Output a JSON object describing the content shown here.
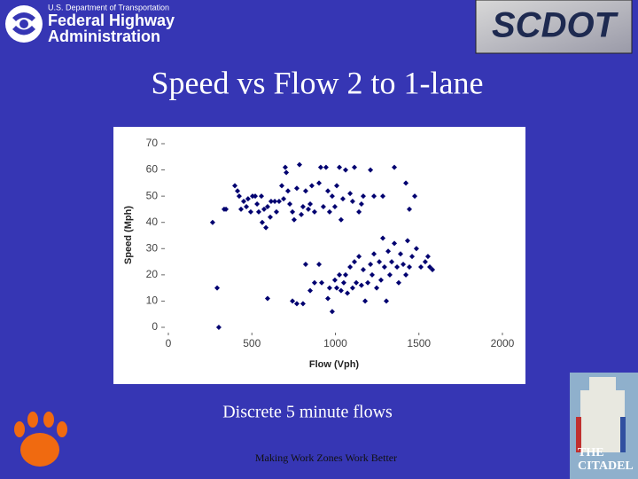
{
  "slide": {
    "fhwa": [
      "U.S. Department of Transportation",
      "Federal Highway",
      "Administration"
    ],
    "scdot": "SCDOT",
    "caption": "Discrete 5 minute flows",
    "footer": "Making Work Zones Work Better",
    "citadel": [
      "THE",
      "CITADEL"
    ]
  },
  "chart_data": {
    "type": "scatter",
    "title": "Speed vs Flow  2 to 1-lane",
    "x_label": "Flow (Vph)",
    "y_label": "Speed (Mph)",
    "color": "#000070",
    "xlim": [
      0,
      2000
    ],
    "xticks": [
      0,
      500,
      1000,
      1500,
      2000
    ],
    "ylim": [
      0,
      70
    ],
    "yticks": [
      0,
      10,
      20,
      30,
      40,
      50,
      60,
      70
    ],
    "x": [
      265,
      292,
      302,
      334,
      345,
      398,
      414,
      424,
      435,
      451,
      467,
      477,
      493,
      504,
      520,
      531,
      541,
      557,
      562,
      573,
      584,
      594,
      610,
      615,
      637,
      647,
      663,
      679,
      690,
      700,
      706,
      716,
      727,
      743,
      753,
      769,
      785,
      796,
      806,
      822,
      838,
      849,
      859,
      875,
      902,
      912,
      928,
      944,
      955,
      965,
      981,
      997,
      1008,
      1024,
      1034,
      1045,
      1061,
      1088,
      1103,
      1114,
      1141,
      1156,
      1167,
      1210,
      1231,
      1284,
      1353,
      1422,
      1443,
      1475,
      594,
      743,
      769,
      806,
      822,
      849,
      875,
      902,
      918,
      955,
      965,
      981,
      997,
      1008,
      1024,
      1034,
      1050,
      1061,
      1072,
      1088,
      1103,
      1114,
      1125,
      1141,
      1156,
      1167,
      1178,
      1194,
      1210,
      1220,
      1231,
      1247,
      1263,
      1273,
      1284,
      1294,
      1305,
      1316,
      1326,
      1337,
      1353,
      1369,
      1379,
      1390,
      1406,
      1422,
      1432,
      1443,
      1459,
      1485,
      1512,
      1538,
      1554,
      1565,
      1581
    ],
    "values": [
      40,
      15,
      0,
      45,
      45,
      54,
      52,
      50,
      45,
      48,
      46,
      49,
      44,
      50,
      50,
      47,
      44,
      50,
      40,
      45,
      38,
      46,
      42,
      48,
      48,
      44,
      48,
      54,
      49,
      61,
      59,
      52,
      47,
      44,
      41,
      53,
      62,
      43,
      46,
      52,
      45,
      47,
      54,
      44,
      55,
      61,
      46,
      61,
      52,
      44,
      50,
      46,
      54,
      61,
      41,
      49,
      60,
      51,
      48,
      61,
      44,
      47,
      50,
      60,
      50,
      50,
      61,
      55,
      45,
      50,
      11,
      10,
      9,
      9,
      24,
      14,
      17,
      24,
      17,
      11,
      15,
      6,
      18,
      15,
      20,
      14,
      17,
      20,
      13,
      23,
      15,
      25,
      17,
      27,
      16,
      22,
      10,
      17,
      24,
      20,
      28,
      15,
      25,
      18,
      34,
      23,
      10,
      29,
      20,
      25,
      32,
      23,
      17,
      28,
      24,
      20,
      33,
      23,
      27,
      30,
      23,
      25,
      27,
      23,
      22
    ]
  }
}
